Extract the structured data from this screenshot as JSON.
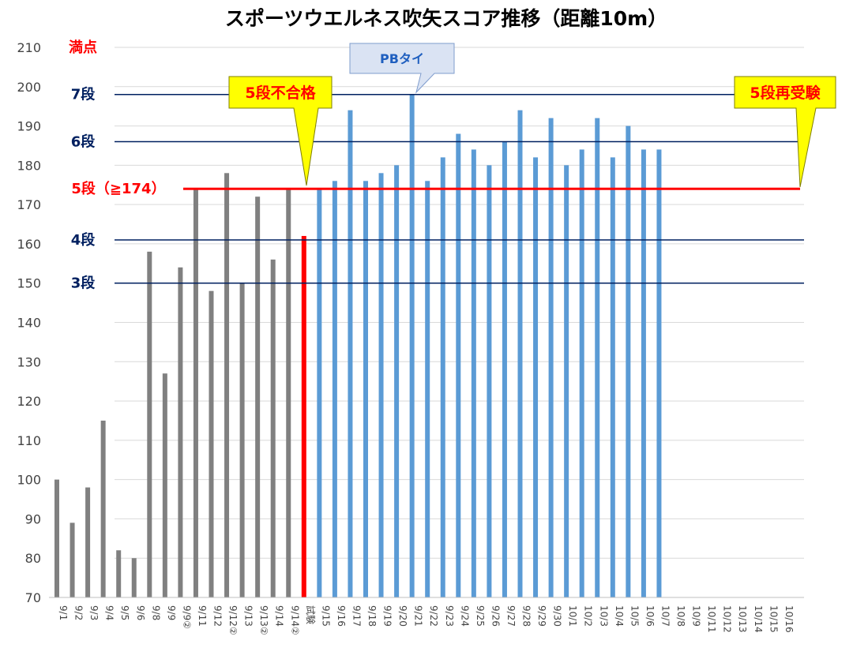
{
  "chart_data": {
    "type": "bar",
    "title": "スポーツウエルネス吹矢スコア推移（距離10m）",
    "xlabel": "",
    "ylabel": "",
    "ylim": [
      70,
      210
    ],
    "yticks": [
      70,
      80,
      90,
      100,
      110,
      120,
      130,
      140,
      150,
      160,
      170,
      180,
      190,
      200,
      210
    ],
    "grid": true,
    "categories": [
      "9/1",
      "9/2",
      "9/3",
      "9/4",
      "9/5",
      "9/6",
      "9/8",
      "9/9",
      "9/9②",
      "9/11",
      "9/12",
      "9/12②",
      "9/13",
      "9/13②",
      "9/14",
      "9/14②",
      "試験",
      "9/15",
      "9/16",
      "9/17",
      "9/18",
      "9/19",
      "9/20",
      "9/21",
      "9/22",
      "9/23",
      "9/24",
      "9/25",
      "9/26",
      "9/27",
      "9/28",
      "9/29",
      "9/30",
      "10/1",
      "10/2",
      "10/3",
      "10/4",
      "10/5",
      "10/6",
      "10/7",
      "10/8",
      "10/9",
      "10/11",
      "10/12",
      "10/13",
      "10/14",
      "10/15",
      "10/16"
    ],
    "values": [
      100,
      89,
      98,
      115,
      82,
      80,
      158,
      127,
      154,
      174,
      148,
      178,
      150,
      172,
      156,
      174,
      162,
      174,
      176,
      194,
      176,
      178,
      180,
      198,
      176,
      182,
      188,
      184,
      180,
      186,
      194,
      182,
      192,
      180,
      184,
      192,
      182,
      190,
      184,
      184,
      null,
      null,
      null,
      null,
      null,
      null,
      null,
      null
    ],
    "bar_colors": {
      "before": "#808080",
      "exam": "#ff0000",
      "after": "#5b9bd5"
    },
    "exam_index": 16,
    "reference_lines": [
      {
        "label": "満点",
        "value": 210,
        "color": "#ff0000",
        "show_line": false
      },
      {
        "label": "7段",
        "value": 198,
        "color": "#002060",
        "show_line": true
      },
      {
        "label": "6段",
        "value": 186,
        "color": "#002060",
        "show_line": true
      },
      {
        "label": "5段（≧174）",
        "value": 174,
        "color": "#ff0000",
        "show_line": true
      },
      {
        "label": "4段",
        "value": 161,
        "color": "#002060",
        "show_line": true
      },
      {
        "label": "3段",
        "value": 150,
        "color": "#002060",
        "show_line": true
      }
    ],
    "annotations": [
      {
        "text": "5段不合格",
        "style": "yellow",
        "target_category": "試験"
      },
      {
        "text": "PBタイ",
        "style": "blue",
        "target_category": "9/21"
      },
      {
        "text": "5段再受験",
        "style": "yellow",
        "target_category": "10/16"
      }
    ]
  }
}
